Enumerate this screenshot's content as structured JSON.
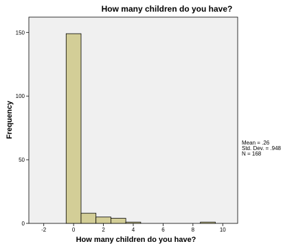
{
  "chart_data": {
    "type": "bar",
    "title": "How many children do you have?",
    "xlabel": "How many children do you have?",
    "ylabel": "Frequency",
    "xlim": [
      -3,
      11
    ],
    "ylim": [
      0,
      162
    ],
    "xticks": [
      -2,
      0,
      2,
      4,
      6,
      8,
      10
    ],
    "yticks": [
      0,
      50,
      100,
      150
    ],
    "bin_width": 1,
    "bins": [
      {
        "start": -0.5,
        "end": 0.5,
        "value": 149
      },
      {
        "start": 0.5,
        "end": 1.5,
        "value": 8
      },
      {
        "start": 1.5,
        "end": 2.5,
        "value": 5
      },
      {
        "start": 2.5,
        "end": 3.5,
        "value": 4
      },
      {
        "start": 3.5,
        "end": 4.5,
        "value": 1
      },
      {
        "start": 8.5,
        "end": 9.5,
        "value": 1
      }
    ],
    "stats": {
      "mean": "Mean = .26",
      "std": "Std. Dev. = .948",
      "n": "N = 168"
    },
    "colors": {
      "plot_background": "#f0f0f0",
      "bar_fill": "#d3ce97",
      "bar_stroke": "#000000"
    },
    "grid": false
  }
}
